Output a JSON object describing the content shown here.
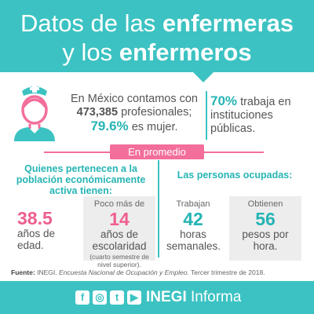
{
  "header": {
    "line1_normal": "Datos de las ",
    "line1_bold": "enfermeras",
    "line2_normal": "y los ",
    "line2_bold": "enfermeros"
  },
  "intro": {
    "text_before": "En México contamos con",
    "count": "473,385",
    "text_mid": "profesionales;",
    "percent": "79.6%",
    "text_after": "es mujer."
  },
  "public_sector": {
    "percent": "70%",
    "text": "trabaja en instituciones públicas."
  },
  "average_label": "En promedio",
  "economically_active": {
    "heading": "Quienes pertenecen a la población económicamente activa tienen:",
    "age": {
      "value": "38.5",
      "label": "años de edad."
    },
    "schooling": {
      "prefix": "Poco más de",
      "value": "14",
      "label": "años de escolaridad",
      "note": "(cuarto semestre de nivel superior)."
    }
  },
  "employed": {
    "heading": "Las personas ocupadas:",
    "hours": {
      "prefix": "Trabajan",
      "value": "42",
      "label": "horas semanales."
    },
    "pay": {
      "prefix": "Obtienen",
      "value": "56",
      "label": "pesos por hora."
    }
  },
  "source": {
    "label": "Fuente:",
    "org": "INEGI.",
    "survey": "Encuesta Nacional de Ocupación y Empleo.",
    "period": "Tercer trimestre de 2018."
  },
  "footer": {
    "icons": [
      "facebook-icon",
      "instagram-icon",
      "twitter-icon",
      "youtube-icon"
    ],
    "glyphs": {
      "facebook": "f",
      "instagram": "◎",
      "twitter": "t",
      "youtube": "▶"
    },
    "brand_bold": "INEGI",
    "brand_rest": " Informa"
  },
  "colors": {
    "teal": "#3cc2c2",
    "pink": "#f36e9a",
    "grey_box": "#ededed"
  }
}
